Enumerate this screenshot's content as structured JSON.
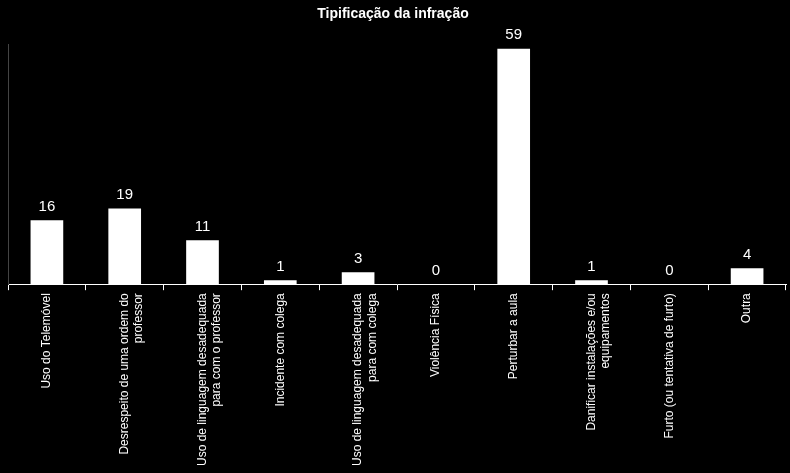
{
  "chart_data": {
    "type": "bar",
    "title": "Tipificação da infração",
    "categories": [
      "Uso do Telemóvel",
      "Desrespeito de uma ordem do professor",
      "Uso de linguagem desadequada para com o professor",
      "Incidente com colega",
      "Uso de linguagem desadequada para com colega",
      "Violência Física",
      "Perturbar a aula",
      "Danificar instalações e/ou equipamentos",
      "Furto (ou tentativa de furto)",
      "Outra"
    ],
    "values": [
      16,
      19,
      11,
      1,
      3,
      0,
      59,
      1,
      0,
      4
    ],
    "color": "#ffffff",
    "ylim": [
      0,
      60
    ],
    "grid": false,
    "data_labels": true,
    "tick_labels": "x"
  }
}
